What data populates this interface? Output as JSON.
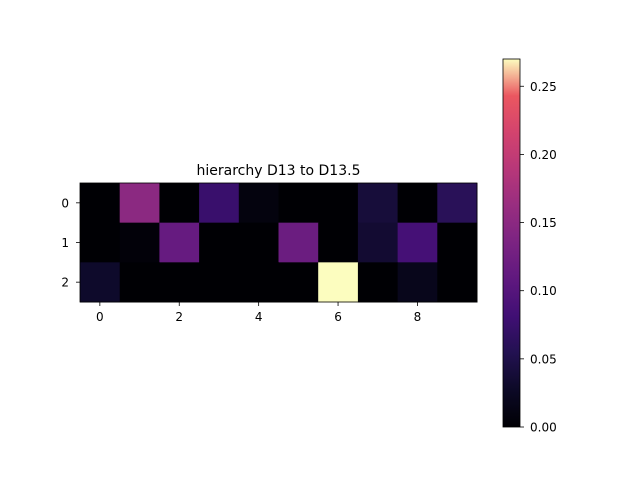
{
  "chart_data": {
    "type": "heatmap",
    "title": "hierarchy D13 to D13.5",
    "xlabel": "",
    "ylabel": "",
    "rows": 3,
    "cols": 10,
    "x_ticks": [
      0,
      2,
      4,
      6,
      8
    ],
    "y_ticks": [
      0,
      1,
      2
    ],
    "values": [
      [
        0.0,
        0.15,
        0.0,
        0.075,
        0.008,
        0.0,
        0.0,
        0.04,
        0.0,
        0.06
      ],
      [
        0.0,
        0.004,
        0.115,
        0.0,
        0.0,
        0.12,
        0.0,
        0.035,
        0.085,
        0.0
      ],
      [
        0.03,
        0.0,
        0.0,
        0.0,
        0.0,
        0.0,
        0.27,
        0.0,
        0.018,
        0.0
      ]
    ],
    "colormap": "magma",
    "colorbar": {
      "vmin": 0.0,
      "vmax": 0.27,
      "ticks": [
        0.0,
        0.05,
        0.1,
        0.15,
        0.2,
        0.25
      ],
      "tick_labels": [
        "0.00",
        "0.05",
        "0.10",
        "0.15",
        "0.20",
        "0.25"
      ]
    },
    "grid": false
  }
}
